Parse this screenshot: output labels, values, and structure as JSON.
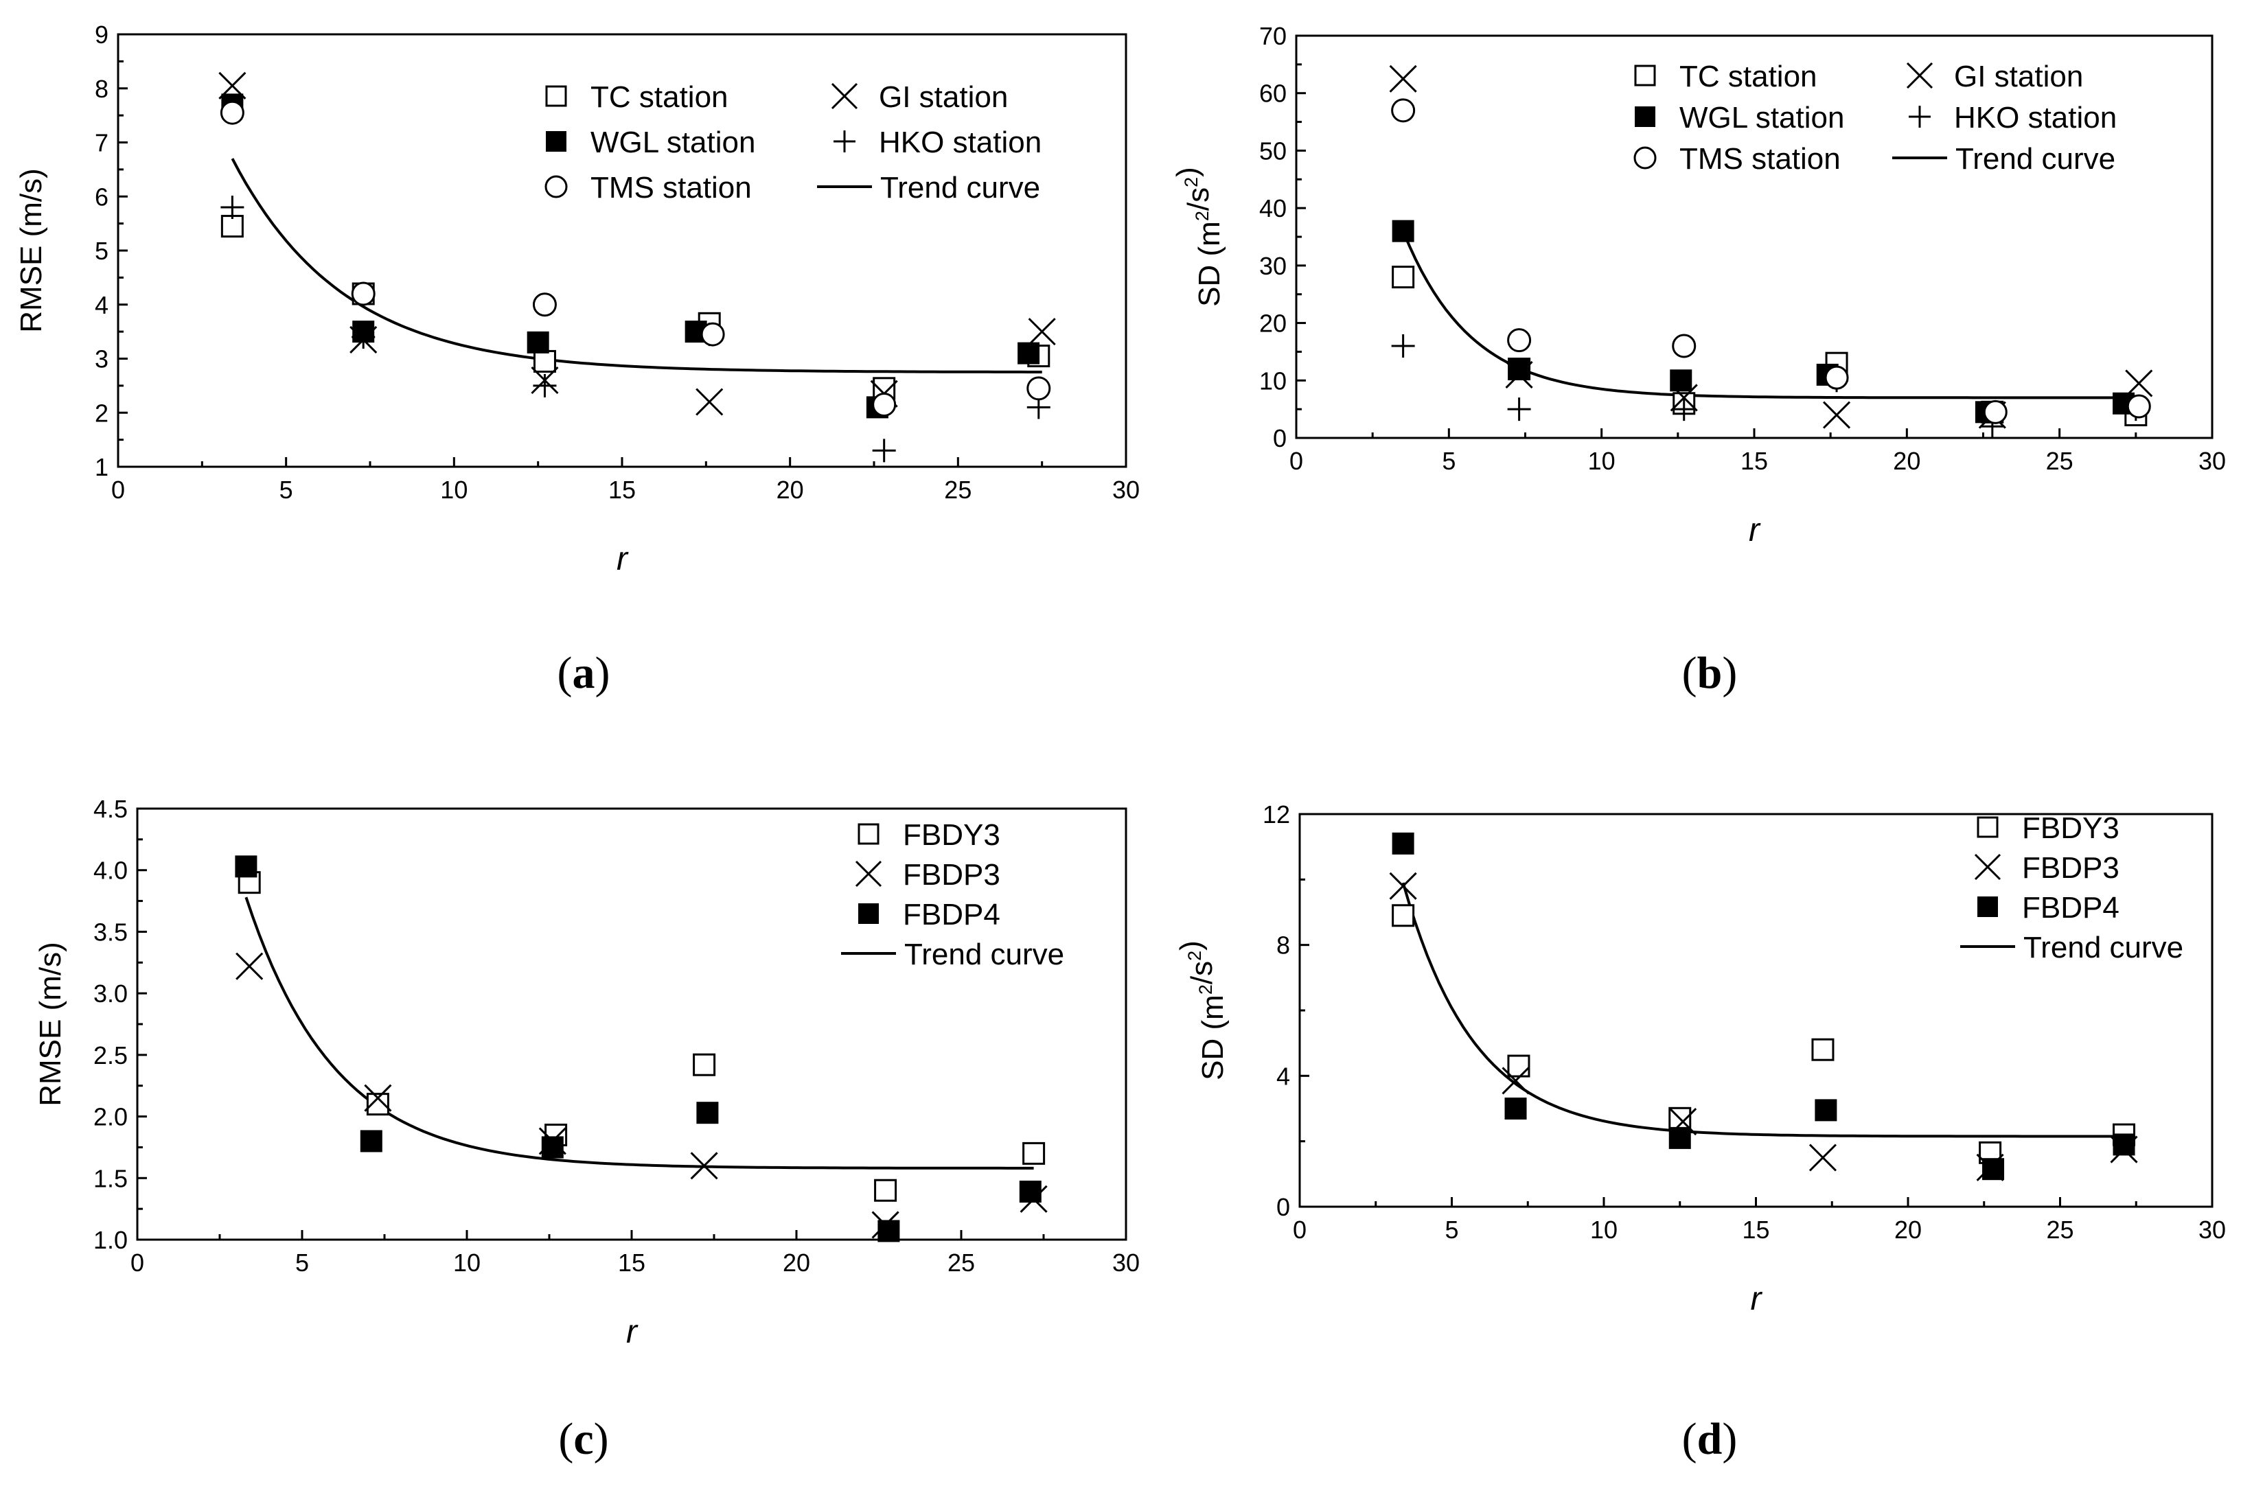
{
  "figure": {
    "panels": [
      {
        "label_open": "(",
        "label_letter": "a",
        "label_close": ")"
      },
      {
        "label_open": "(",
        "label_letter": "b",
        "label_close": ")"
      },
      {
        "label_open": "(",
        "label_letter": "c",
        "label_close": ")"
      },
      {
        "label_open": "(",
        "label_letter": "d",
        "label_close": ")"
      }
    ]
  },
  "chart_data": [
    {
      "id": "a",
      "type": "scatter",
      "title": "",
      "xlabel": "r",
      "ylabel": "RMSE (m/s)",
      "ylabel_parts": [
        {
          "text": "RMSE (m/s)"
        }
      ],
      "xlim": [
        0,
        30
      ],
      "ylim": [
        1,
        9
      ],
      "xticks": [
        0,
        5,
        10,
        15,
        20,
        25,
        30
      ],
      "yticks": [
        1,
        2,
        3,
        4,
        5,
        6,
        7,
        8,
        9
      ],
      "ytick_labels": [
        "1",
        "2",
        "3",
        "4",
        "5",
        "6",
        "7",
        "8",
        "9"
      ],
      "legend_columns": 2,
      "legend": [
        {
          "name": "TC station",
          "marker": "open-square"
        },
        {
          "name": "GI station",
          "marker": "x"
        },
        {
          "name": "WGL station",
          "marker": "filled-square"
        },
        {
          "name": "HKO station",
          "marker": "plus"
        },
        {
          "name": "TMS station",
          "marker": "open-circle"
        },
        {
          "name": "Trend curve",
          "marker": "line"
        }
      ],
      "series": [
        {
          "name": "TC station",
          "marker": "open-square",
          "points": [
            [
              3.4,
              5.45
            ],
            [
              7.3,
              4.2
            ],
            [
              12.7,
              2.95
            ],
            [
              17.6,
              3.65
            ],
            [
              22.8,
              2.45
            ],
            [
              27.4,
              3.05
            ]
          ]
        },
        {
          "name": "GI station",
          "marker": "x",
          "points": [
            [
              3.4,
              8.05
            ],
            [
              7.3,
              3.35
            ],
            [
              12.7,
              2.6
            ],
            [
              17.6,
              2.2
            ],
            [
              22.8,
              2.35
            ],
            [
              27.5,
              3.5
            ]
          ]
        },
        {
          "name": "WGL station",
          "marker": "filled-square",
          "points": [
            [
              3.4,
              7.7
            ],
            [
              7.3,
              3.5
            ],
            [
              12.5,
              3.3
            ],
            [
              17.2,
              3.5
            ],
            [
              22.6,
              2.1
            ],
            [
              27.1,
              3.1
            ]
          ]
        },
        {
          "name": "HKO station",
          "marker": "plus",
          "points": [
            [
              3.4,
              5.8
            ],
            [
              7.3,
              3.4
            ],
            [
              12.7,
              2.5
            ],
            [
              17.6,
              3.45
            ],
            [
              22.8,
              1.3
            ],
            [
              27.4,
              2.1
            ]
          ]
        },
        {
          "name": "TMS station",
          "marker": "open-circle",
          "points": [
            [
              3.4,
              7.55
            ],
            [
              7.3,
              4.2
            ],
            [
              12.7,
              4.0
            ],
            [
              17.7,
              3.45
            ],
            [
              22.8,
              2.15
            ],
            [
              27.4,
              2.45
            ]
          ]
        }
      ],
      "trend": {
        "name": "Trend curve",
        "y_inf": 2.75,
        "amplitude": 3.95,
        "x0": 3.4,
        "tau": 3.3,
        "x_range": [
          3.4,
          27.5
        ]
      }
    },
    {
      "id": "b",
      "type": "scatter",
      "title": "",
      "xlabel": "r",
      "ylabel": "SD (m²/s²)",
      "ylabel_parts": [
        {
          "text": "SD (m"
        },
        {
          "text": "2",
          "sup": true
        },
        {
          "text": "/s"
        },
        {
          "text": "2",
          "sup": true
        },
        {
          "text": ")"
        }
      ],
      "xlim": [
        0,
        30
      ],
      "ylim": [
        0,
        70
      ],
      "xticks": [
        0,
        5,
        10,
        15,
        20,
        25,
        30
      ],
      "yticks": [
        0,
        10,
        20,
        30,
        40,
        50,
        60,
        70
      ],
      "ytick_labels": [
        "0",
        "10",
        "20",
        "30",
        "40",
        "50",
        "60",
        "70"
      ],
      "legend_columns": 2,
      "legend": [
        {
          "name": "TC station",
          "marker": "open-square"
        },
        {
          "name": "GI station",
          "marker": "x"
        },
        {
          "name": "WGL station",
          "marker": "filled-square"
        },
        {
          "name": "HKO station",
          "marker": "plus"
        },
        {
          "name": "TMS station",
          "marker": "open-circle"
        },
        {
          "name": "Trend curve",
          "marker": "line"
        }
      ],
      "series": [
        {
          "name": "TC station",
          "marker": "open-square",
          "points": [
            [
              3.5,
              28
            ],
            [
              7.3,
              12
            ],
            [
              12.7,
              6
            ],
            [
              17.7,
              13
            ],
            [
              22.8,
              4.5
            ],
            [
              27.5,
              4
            ]
          ]
        },
        {
          "name": "GI station",
          "marker": "x",
          "points": [
            [
              3.5,
              62.5
            ],
            [
              7.3,
              11
            ],
            [
              12.7,
              7
            ],
            [
              17.7,
              4
            ],
            [
              22.8,
              4
            ],
            [
              27.6,
              9.5
            ]
          ]
        },
        {
          "name": "WGL station",
          "marker": "filled-square",
          "points": [
            [
              3.5,
              36
            ],
            [
              7.3,
              12
            ],
            [
              12.6,
              10
            ],
            [
              17.4,
              11
            ],
            [
              22.6,
              4.5
            ],
            [
              27.1,
              6
            ]
          ]
        },
        {
          "name": "HKO station",
          "marker": "plus",
          "points": [
            [
              3.5,
              16
            ],
            [
              7.3,
              5
            ],
            [
              12.7,
              5
            ],
            [
              17.7,
              10
            ],
            [
              22.8,
              2
            ],
            [
              27.5,
              5
            ]
          ]
        },
        {
          "name": "TMS station",
          "marker": "open-circle",
          "points": [
            [
              3.5,
              57
            ],
            [
              7.3,
              17
            ],
            [
              12.7,
              16
            ],
            [
              17.7,
              10.5
            ],
            [
              22.9,
              4.5
            ],
            [
              27.6,
              5.5
            ]
          ]
        }
      ],
      "trend": {
        "name": "Trend curve",
        "y_inf": 7,
        "amplitude": 29,
        "x0": 3.5,
        "tau": 2.2,
        "x_range": [
          3.5,
          27.6
        ]
      }
    },
    {
      "id": "c",
      "type": "scatter",
      "title": "",
      "xlabel": "r",
      "ylabel": "RMSE (m/s)",
      "ylabel_parts": [
        {
          "text": "RMSE (m/s)"
        }
      ],
      "xlim": [
        0,
        30
      ],
      "ylim": [
        1.0,
        4.5
      ],
      "xticks": [
        0,
        5,
        10,
        15,
        20,
        25,
        30
      ],
      "yticks": [
        1.0,
        1.5,
        2.0,
        2.5,
        3.0,
        3.5,
        4.0,
        4.5
      ],
      "ytick_labels": [
        "1.0",
        "1.5",
        "2.0",
        "2.5",
        "3.0",
        "3.5",
        "4.0",
        "4.5"
      ],
      "legend_columns": 1,
      "legend": [
        {
          "name": "FBDY3",
          "marker": "open-square"
        },
        {
          "name": "FBDP3",
          "marker": "x"
        },
        {
          "name": "FBDP4",
          "marker": "filled-square"
        },
        {
          "name": "Trend curve",
          "marker": "line"
        }
      ],
      "series": [
        {
          "name": "FBDY3",
          "marker": "open-square",
          "points": [
            [
              3.4,
              3.9
            ],
            [
              7.3,
              2.1
            ],
            [
              12.7,
              1.85
            ],
            [
              17.2,
              2.42
            ],
            [
              22.7,
              1.4
            ],
            [
              27.2,
              1.7
            ]
          ]
        },
        {
          "name": "FBDP3",
          "marker": "x",
          "points": [
            [
              3.4,
              3.22
            ],
            [
              7.3,
              2.15
            ],
            [
              12.6,
              1.8
            ],
            [
              17.2,
              1.6
            ],
            [
              22.7,
              1.12
            ],
            [
              27.2,
              1.33
            ]
          ]
        },
        {
          "name": "FBDP4",
          "marker": "filled-square",
          "points": [
            [
              3.3,
              4.03
            ],
            [
              7.1,
              1.8
            ],
            [
              12.6,
              1.75
            ],
            [
              17.3,
              2.03
            ],
            [
              22.8,
              1.07
            ],
            [
              27.1,
              1.39
            ]
          ]
        }
      ],
      "trend": {
        "name": "Trend curve",
        "y_inf": 1.58,
        "amplitude": 2.2,
        "x0": 3.3,
        "tau": 2.7,
        "x_range": [
          3.3,
          27.2
        ]
      }
    },
    {
      "id": "d",
      "type": "scatter",
      "title": "",
      "xlabel": "r",
      "ylabel": "SD (m²/s²)",
      "ylabel_parts": [
        {
          "text": "SD (m"
        },
        {
          "text": "2",
          "sup": true
        },
        {
          "text": "/s"
        },
        {
          "text": "2",
          "sup": true
        },
        {
          "text": ")"
        }
      ],
      "xlim": [
        0,
        30
      ],
      "ylim": [
        0,
        12
      ],
      "xticks": [
        0,
        5,
        10,
        15,
        20,
        25,
        30
      ],
      "yticks": [
        0,
        4,
        8,
        12
      ],
      "ytick_labels": [
        "0",
        "4",
        "8",
        "12"
      ],
      "legend_columns": 1,
      "legend": [
        {
          "name": "FBDY3",
          "marker": "open-square"
        },
        {
          "name": "FBDP3",
          "marker": "x"
        },
        {
          "name": "FBDP4",
          "marker": "filled-square"
        },
        {
          "name": "Trend curve",
          "marker": "line"
        }
      ],
      "series": [
        {
          "name": "FBDY3",
          "marker": "open-square",
          "points": [
            [
              3.4,
              8.9
            ],
            [
              7.2,
              4.3
            ],
            [
              12.5,
              2.7
            ],
            [
              17.2,
              4.8
            ],
            [
              22.7,
              1.65
            ],
            [
              27.1,
              2.2
            ]
          ]
        },
        {
          "name": "FBDP3",
          "marker": "x",
          "points": [
            [
              3.4,
              9.8
            ],
            [
              7.1,
              3.85
            ],
            [
              12.6,
              2.6
            ],
            [
              17.2,
              1.5
            ],
            [
              22.7,
              1.2
            ],
            [
              27.1,
              1.75
            ]
          ]
        },
        {
          "name": "FBDP4",
          "marker": "filled-square",
          "points": [
            [
              3.4,
              11.1
            ],
            [
              7.1,
              3.0
            ],
            [
              12.5,
              2.1
            ],
            [
              17.3,
              2.95
            ],
            [
              22.8,
              1.15
            ],
            [
              27.1,
              1.9
            ]
          ]
        }
      ],
      "trend": {
        "name": "Trend curve",
        "y_inf": 2.15,
        "amplitude": 7.75,
        "x0": 3.4,
        "tau": 2.35,
        "x_range": [
          3.4,
          27.1
        ]
      }
    }
  ]
}
